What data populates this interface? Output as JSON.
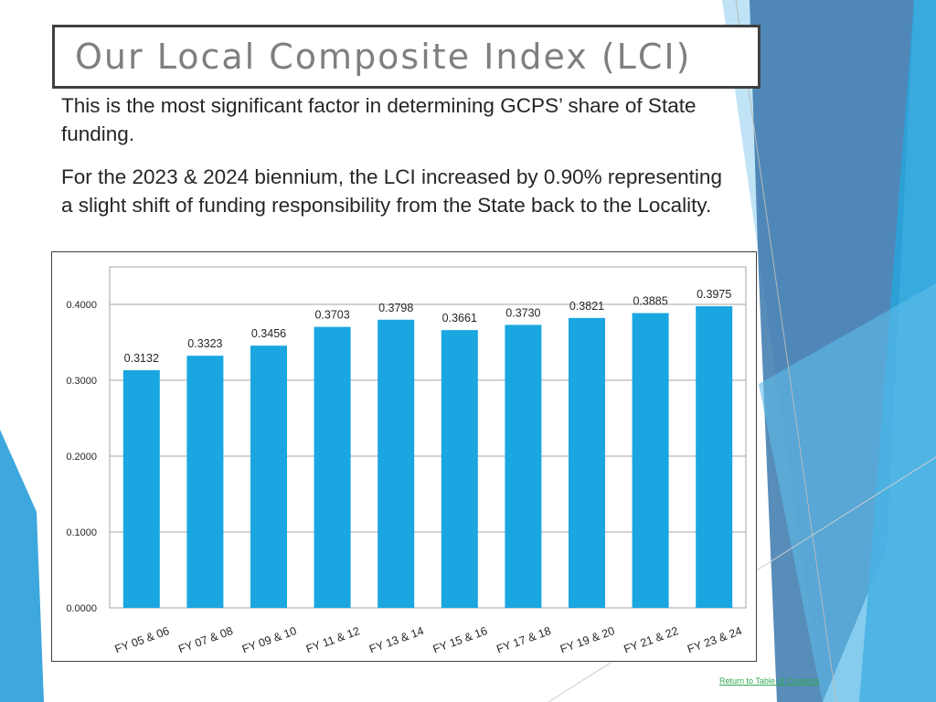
{
  "slide": {
    "title": "Our Local Composite Index (LCI)",
    "paragraph1": "This is the most significant factor in determining GCPS’ share of State funding.",
    "paragraph2": "For the 2023 & 2024 biennium, the LCI increased by 0.90% representing a slight shift of funding responsibility from the State back to the Locality.",
    "footer_link": "Return to Table of Contents"
  },
  "colors": {
    "bar": "#1aa6e0",
    "grid": "#a6a6a6",
    "deco_light": "#7fc7ec",
    "deco_mid": "#3ea7dd",
    "deco_dark": "#3b78ad"
  },
  "chart_data": {
    "type": "bar",
    "categories": [
      "FY 05 & 06",
      "FY 07 & 08",
      "FY 09 & 10",
      "FY 11 & 12",
      "FY 13 & 14",
      "FY 15 & 16",
      "FY 17 & 18",
      "FY 19 & 20",
      "FY 21 & 22",
      "FY 23 & 24"
    ],
    "values": [
      0.3132,
      0.3323,
      0.3456,
      0.3703,
      0.3798,
      0.3661,
      0.373,
      0.3821,
      0.3885,
      0.3975
    ],
    "data_labels": [
      "0.3132",
      "0.3323",
      "0.3456",
      "0.3703",
      "0.3798",
      "0.3661",
      "0.3730",
      "0.3821",
      "0.3885",
      "0.3975"
    ],
    "y_ticks": [
      0,
      0.1,
      0.2,
      0.3,
      0.4
    ],
    "y_tick_labels": [
      "0.0000",
      "0.1000",
      "0.2000",
      "0.3000",
      "0.4000"
    ],
    "ylim": [
      0,
      0.4
    ],
    "grid": true,
    "legend": "none"
  }
}
